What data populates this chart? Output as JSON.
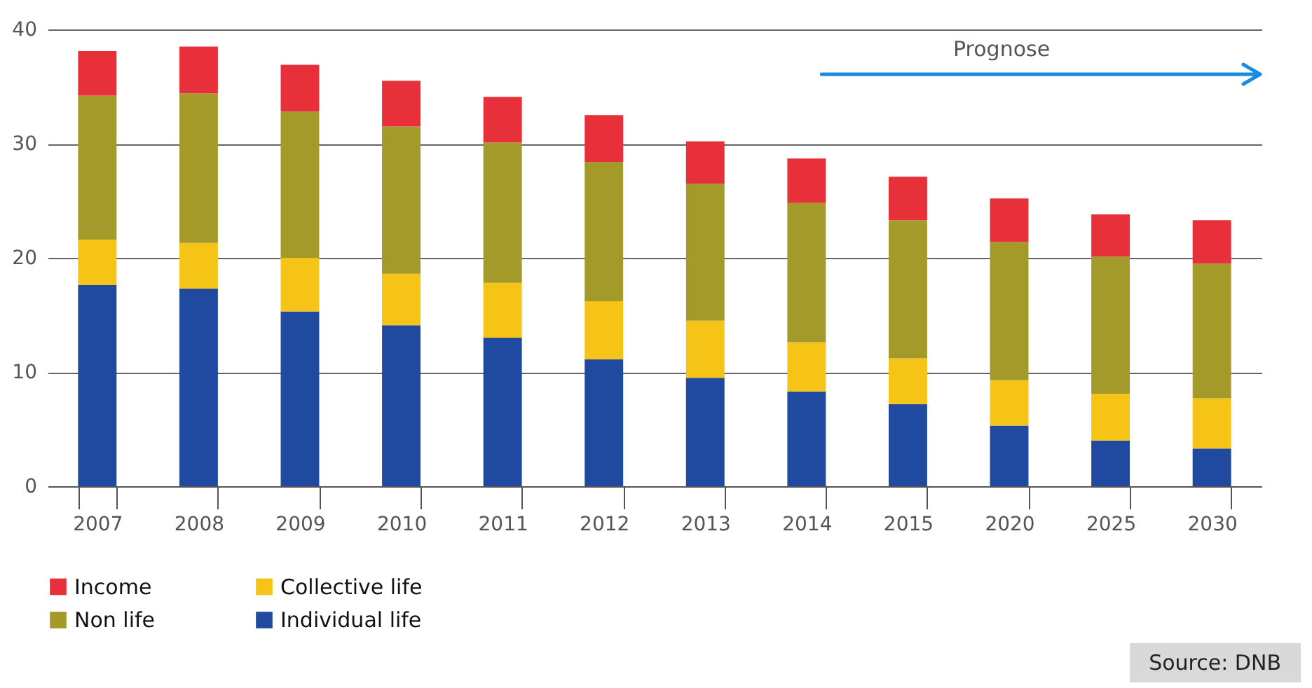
{
  "chart_data": {
    "type": "bar",
    "stacked": true,
    "categories": [
      "2007",
      "2008",
      "2009",
      "2010",
      "2011",
      "2012",
      "2013",
      "2014",
      "2015",
      "2020",
      "2025",
      "2030"
    ],
    "series": [
      {
        "name": "Individual life",
        "color": "#1f4aa0",
        "values": [
          17.6,
          17.3,
          15.3,
          14.1,
          13.0,
          11.1,
          9.5,
          8.3,
          7.2,
          5.3,
          4.0,
          3.3
        ]
      },
      {
        "name": "Collective life",
        "color": "#f6c417",
        "values": [
          4.0,
          4.0,
          4.7,
          4.5,
          4.8,
          5.1,
          5.0,
          4.3,
          4.0,
          4.0,
          4.1,
          4.4
        ]
      },
      {
        "name": "Non life",
        "color": "#a39a2a",
        "values": [
          12.6,
          13.1,
          12.8,
          12.9,
          12.3,
          12.2,
          12.0,
          12.2,
          12.1,
          12.1,
          12.0,
          11.8
        ]
      },
      {
        "name": "Income",
        "color": "#e8303a",
        "values": [
          3.9,
          4.1,
          4.1,
          4.0,
          4.0,
          4.1,
          3.7,
          3.9,
          3.8,
          3.8,
          3.7,
          3.8
        ]
      }
    ],
    "ylim": [
      0,
      40
    ],
    "yticks": [
      0,
      10,
      20,
      30,
      40
    ],
    "grid": "y",
    "legend": "bottom left",
    "annotations": [
      "Prognose",
      "Source: DNB"
    ]
  }
}
